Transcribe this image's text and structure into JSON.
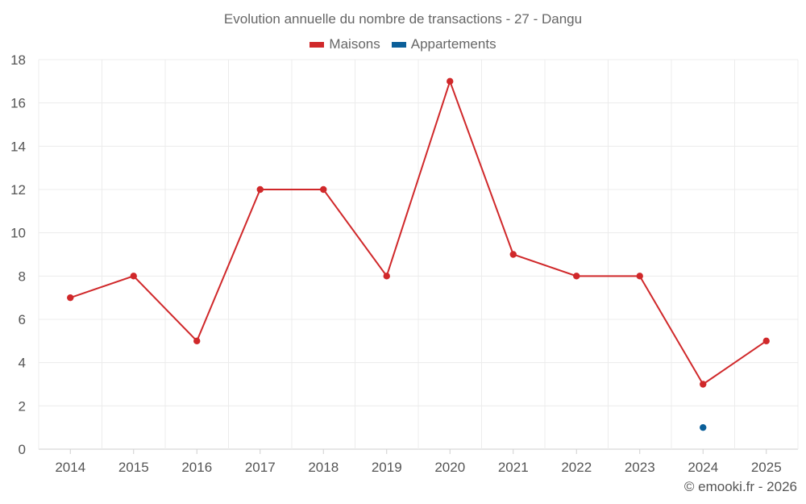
{
  "chart_data": {
    "type": "line",
    "title": "Evolution annuelle du nombre de transactions - 27 - Dangu",
    "categories": [
      "2014",
      "2015",
      "2016",
      "2017",
      "2018",
      "2019",
      "2020",
      "2021",
      "2022",
      "2023",
      "2024",
      "2025"
    ],
    "series": [
      {
        "name": "Maisons",
        "color": "#d0282a",
        "values": [
          7,
          8,
          5,
          12,
          12,
          8,
          17,
          9,
          8,
          8,
          3,
          5
        ]
      },
      {
        "name": "Appartements",
        "color": "#0b5f99",
        "values": [
          null,
          null,
          null,
          null,
          null,
          null,
          null,
          null,
          null,
          null,
          1,
          null
        ]
      }
    ],
    "ylim": [
      0,
      18
    ],
    "yticks": [
      0,
      2,
      4,
      6,
      8,
      10,
      12,
      14,
      16,
      18
    ],
    "xlabel": "",
    "ylabel": "",
    "grid": true,
    "legend_position": "top-center"
  },
  "footer": {
    "credit": "© emooki.fr - 2026"
  }
}
